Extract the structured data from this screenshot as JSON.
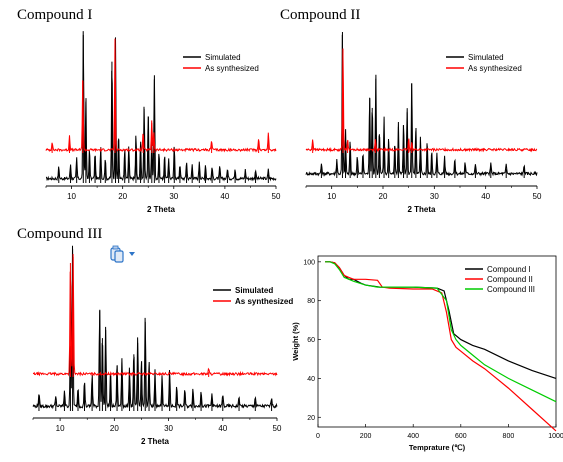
{
  "captions": {
    "c1": "Compound I",
    "c2": "Compound II",
    "c3": "Compound III"
  },
  "icons": {
    "paste_options": "clipboard-icon",
    "dropdown": "chevron-down-icon"
  },
  "colors": {
    "simulated": "#000000",
    "synthesized": "#ff0000",
    "green": "#00cc00",
    "toolbar": "#2e75c8"
  },
  "chart_data": [
    {
      "type": "line",
      "title": "Compound I",
      "xlabel": "2 Theta",
      "xlim": [
        5,
        50
      ],
      "xticks": [
        "10",
        "20",
        "30",
        "40",
        "50"
      ],
      "legend": "top-right",
      "series": [
        {
          "name": "Simulated",
          "baseline": 0.05,
          "peaks": [
            [
              7.5,
              0.08
            ],
            [
              9.8,
              0.1
            ],
            [
              11.0,
              0.14
            ],
            [
              12.3,
              1.0
            ],
            [
              12.8,
              0.55
            ],
            [
              13.5,
              0.2
            ],
            [
              14.6,
              0.18
            ],
            [
              15.7,
              0.22
            ],
            [
              16.6,
              0.14
            ],
            [
              17.9,
              0.82
            ],
            [
              18.6,
              0.95
            ],
            [
              19.2,
              0.3
            ],
            [
              20.4,
              0.2
            ],
            [
              21.2,
              0.22
            ],
            [
              22.6,
              0.3
            ],
            [
              23.5,
              0.26
            ],
            [
              24.2,
              0.5
            ],
            [
              25.0,
              0.45
            ],
            [
              25.7,
              0.28
            ],
            [
              26.2,
              0.7
            ],
            [
              27.1,
              0.18
            ],
            [
              28.2,
              0.16
            ],
            [
              29.0,
              0.14
            ],
            [
              30.1,
              0.22
            ],
            [
              31.2,
              0.1
            ],
            [
              32.5,
              0.12
            ],
            [
              33.6,
              0.1
            ],
            [
              35.0,
              0.12
            ],
            [
              36.2,
              0.1
            ],
            [
              37.5,
              0.08
            ],
            [
              39.0,
              0.08
            ],
            [
              40.5,
              0.07
            ],
            [
              42.0,
              0.07
            ],
            [
              44.0,
              0.06
            ],
            [
              46.0,
              0.06
            ],
            [
              48.5,
              0.06
            ]
          ]
        },
        {
          "name": "As synthesized",
          "baseline": 0.04,
          "peaks": [
            [
              6.2,
              0.07
            ],
            [
              9.6,
              0.12
            ],
            [
              12.2,
              0.6
            ],
            [
              18.5,
              0.92
            ],
            [
              24.0,
              0.15
            ],
            [
              25.7,
              0.25
            ],
            [
              26.1,
              0.15
            ],
            [
              37.4,
              0.08
            ],
            [
              46.6,
              0.1
            ],
            [
              48.5,
              0.14
            ]
          ]
        }
      ]
    },
    {
      "type": "line",
      "title": "Compound II",
      "xlabel": "2 Theta",
      "xlim": [
        5,
        50
      ],
      "xticks": [
        "10",
        "20",
        "30",
        "40",
        "50"
      ],
      "legend": "top-right",
      "series": [
        {
          "name": "Simulated",
          "baseline": 0.05,
          "peaks": [
            [
              8.0,
              0.07
            ],
            [
              11.0,
              0.1
            ],
            [
              12.1,
              1.0
            ],
            [
              12.7,
              0.3
            ],
            [
              13.6,
              0.22
            ],
            [
              15.0,
              0.12
            ],
            [
              16.1,
              0.14
            ],
            [
              17.4,
              0.55
            ],
            [
              17.9,
              0.48
            ],
            [
              18.6,
              0.68
            ],
            [
              19.3,
              0.3
            ],
            [
              20.2,
              0.4
            ],
            [
              21.1,
              0.25
            ],
            [
              22.3,
              0.22
            ],
            [
              23.0,
              0.35
            ],
            [
              24.0,
              0.36
            ],
            [
              24.7,
              0.45
            ],
            [
              25.6,
              0.65
            ],
            [
              26.4,
              0.32
            ],
            [
              27.3,
              0.25
            ],
            [
              28.6,
              0.22
            ],
            [
              29.5,
              0.16
            ],
            [
              30.5,
              0.14
            ],
            [
              32.0,
              0.12
            ],
            [
              34.0,
              0.1
            ],
            [
              36.0,
              0.08
            ],
            [
              38.0,
              0.07
            ],
            [
              41.0,
              0.07
            ],
            [
              44.0,
              0.06
            ],
            [
              47.5,
              0.06
            ]
          ]
        },
        {
          "name": "As synthesized",
          "baseline": 0.05,
          "peaks": [
            [
              6.3,
              0.1
            ],
            [
              12.2,
              0.95
            ],
            [
              13.1,
              0.1
            ],
            [
              18.5,
              0.1
            ],
            [
              25.0,
              0.1
            ],
            [
              25.6,
              0.08
            ]
          ]
        }
      ]
    },
    {
      "type": "line",
      "title": "Compound III",
      "xlabel": "2 Theta",
      "xlim": [
        5,
        50
      ],
      "xticks": [
        "10",
        "20",
        "30",
        "40",
        "50"
      ],
      "legend": "top-right",
      "series": [
        {
          "name": "Simulated",
          "baseline": 0.05,
          "peaks": [
            [
              6.1,
              0.08
            ],
            [
              9.2,
              0.06
            ],
            [
              10.8,
              0.1
            ],
            [
              11.9,
              0.4
            ],
            [
              12.3,
              1.0
            ],
            [
              13.3,
              0.12
            ],
            [
              14.5,
              0.16
            ],
            [
              15.9,
              0.2
            ],
            [
              17.3,
              0.62
            ],
            [
              17.8,
              0.45
            ],
            [
              18.4,
              0.5
            ],
            [
              19.3,
              0.22
            ],
            [
              20.5,
              0.28
            ],
            [
              21.4,
              0.3
            ],
            [
              22.8,
              0.25
            ],
            [
              23.6,
              0.35
            ],
            [
              24.3,
              0.42
            ],
            [
              25.0,
              0.3
            ],
            [
              25.7,
              0.55
            ],
            [
              26.4,
              0.28
            ],
            [
              27.5,
              0.22
            ],
            [
              28.8,
              0.2
            ],
            [
              30.2,
              0.22
            ],
            [
              31.5,
              0.12
            ],
            [
              33.0,
              0.1
            ],
            [
              34.5,
              0.12
            ],
            [
              36.0,
              0.1
            ],
            [
              38.0,
              0.08
            ],
            [
              40.0,
              0.07
            ],
            [
              43.0,
              0.06
            ],
            [
              46.0,
              0.06
            ],
            [
              49.0,
              0.06
            ]
          ]
        },
        {
          "name": "As synthesized",
          "baseline": 0.04,
          "peaks": [
            [
              11.9,
              0.95
            ],
            [
              12.4,
              1.0
            ],
            [
              37.4,
              0.04
            ]
          ]
        }
      ]
    },
    {
      "type": "line",
      "xlabel": "Temprature (℃)",
      "ylabel": "Weight (%)",
      "xlim": [
        0,
        1000
      ],
      "ylim": [
        15,
        103
      ],
      "xticks": [
        "0",
        "200",
        "400",
        "600",
        "800",
        "1000"
      ],
      "yticks": [
        "20",
        "40",
        "60",
        "80",
        "100"
      ],
      "legend": "top-right",
      "series": [
        {
          "name": "Compound I",
          "color": "#000000",
          "x": [
            30,
            50,
            70,
            90,
            110,
            130,
            150,
            180,
            200,
            230,
            260,
            300,
            400,
            500,
            530,
            550,
            570,
            600,
            650,
            700,
            800,
            900,
            1000
          ],
          "y": [
            100,
            100,
            99.5,
            97,
            93,
            91,
            91,
            89,
            88,
            87.5,
            87,
            87,
            87,
            86.5,
            85,
            75,
            63,
            60,
            57,
            55,
            49,
            44,
            40
          ]
        },
        {
          "name": "Compound II",
          "color": "#ff0000",
          "x": [
            30,
            50,
            70,
            90,
            110,
            130,
            150,
            200,
            250,
            270,
            300,
            400,
            480,
            520,
            540,
            560,
            580,
            600,
            650,
            700,
            800,
            900,
            1000
          ],
          "y": [
            100,
            100,
            99.5,
            97,
            93,
            92,
            91,
            91,
            90.5,
            87,
            86.5,
            86,
            86,
            84,
            74,
            60,
            56,
            54,
            49,
            45,
            35,
            24,
            13
          ]
        },
        {
          "name": "Compound III",
          "color": "#00cc00",
          "x": [
            30,
            50,
            70,
            90,
            110,
            130,
            150,
            200,
            250,
            300,
            400,
            500,
            540,
            560,
            580,
            600,
            650,
            700,
            800,
            900,
            1000
          ],
          "y": [
            100,
            100,
            99,
            96,
            92,
            91,
            90,
            88,
            87,
            87,
            87,
            86.5,
            80,
            65,
            60,
            57,
            52,
            47,
            40,
            34,
            28
          ]
        }
      ]
    }
  ]
}
